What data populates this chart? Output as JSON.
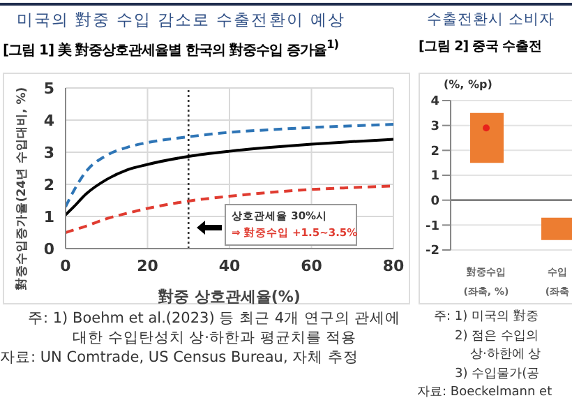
{
  "chart_data": [
    {
      "type": "line",
      "title": "미국의 對중 수입 감소로 수출전환이 예상",
      "subtitle": "[그림 1] 美 對중상호관세율별 한국의 對중수입 증가율$^{1)}$",
      "xlabel": "對중 상호관세율(%)",
      "ylabel": "對중수입증가율(24년 수입대비, %)",
      "x": [
        0,
        2,
        5,
        10,
        15,
        20,
        30,
        40,
        50,
        60,
        70,
        80
      ],
      "series": [
        {
          "color": "#2e75b6",
          "line_style": "dashed",
          "values": [
            1.3,
            1.8,
            2.4,
            2.9,
            3.15,
            3.3,
            3.48,
            3.62,
            3.7,
            3.77,
            3.82,
            3.87
          ]
        },
        {
          "color": "#000000",
          "line_style": "solid",
          "values": [
            1.05,
            1.3,
            1.7,
            2.15,
            2.45,
            2.62,
            2.87,
            3.03,
            3.15,
            3.25,
            3.33,
            3.4
          ]
        },
        {
          "color": "#e03c31",
          "line_style": "dashed",
          "values": [
            0.5,
            0.58,
            0.7,
            0.93,
            1.1,
            1.25,
            1.48,
            1.63,
            1.75,
            1.84,
            1.9,
            1.95
          ]
        }
      ],
      "xlim": [
        0,
        80
      ],
      "xticks": [
        0,
        20,
        40,
        60,
        80
      ],
      "ylim": [
        0,
        5
      ],
      "yticks": [
        0,
        1,
        2,
        3,
        4,
        5
      ],
      "grid": true,
      "marker": "none",
      "ref_lines": [
        {
          "axis": "x",
          "value": 30,
          "color": "#333333",
          "line_style": "dotted"
        }
      ],
      "annotations": [
        "상호관세율 30%시",
        "⇒ 對중수입 +1.5~3.5%",
        "주: 1) Boehm et al.(2023) 등 최근 4개 연구의 관세에",
        "대한 수입탄성치 상·하한과 평균치를 적용",
        "자료: UN Comtrade, US Census Bureau, 자체 추정"
      ]
    },
    {
      "type": "bar",
      "title": "수출전환시 소비자",
      "subtitle": "[그림 2] 중국 수출전",
      "ylabel": "(%, %p)",
      "categories": [
        "對중수입\n(좌축, %)",
        "수입\n(좌축"
      ],
      "series": [
        {
          "type": "bar",
          "color": "#ed7d31",
          "values": [
            2.0,
            0.9
          ],
          "base": [
            1.5,
            -1.6
          ]
        },
        {
          "type": "scatter",
          "color": "#e8221b",
          "x": [
            "對중수입\n(좌축, %)"
          ],
          "values": [
            2.9
          ],
          "marker": "circle"
        }
      ],
      "ylim": [
        -2,
        4
      ],
      "yticks": [
        -2,
        -1,
        0,
        1,
        2,
        3,
        4
      ],
      "grid": "y",
      "ref_lines": [
        {
          "axis": "y",
          "value": 0,
          "color": "#7f7f7f",
          "line_style": "solid"
        }
      ],
      "annotations": [
        "주: 1) 미국의 對중",
        "2) 점은 수입의",
        "상·하한에 상",
        "3) 수입물가(공",
        "자료: Boeckelmann et"
      ]
    }
  ]
}
